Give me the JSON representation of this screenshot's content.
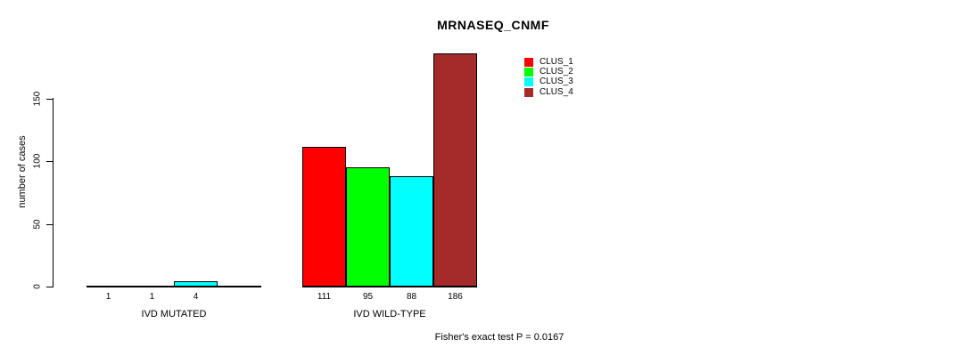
{
  "title": "MRNASEQ_CNMF",
  "footer": "Fisher's exact test P = 0.0167",
  "colors": {
    "background": "#ffffff",
    "axis": "#000000",
    "bar_border": "#000000",
    "clus_1": "#ff0000",
    "clus_2": "#00ff00",
    "clus_3": "#00ffff",
    "clus_4": "#a52a2a"
  },
  "chart_data": {
    "type": "bar",
    "title": "MRNASEQ_CNMF",
    "xlabel": "",
    "ylabel": "number of cases",
    "ylim": [
      0,
      186
    ],
    "yticks": [
      0,
      50,
      100,
      150
    ],
    "grid": false,
    "legend_position": "top-right",
    "categories": [
      "IVD MUTATED",
      "IVD WILD-TYPE"
    ],
    "series": [
      {
        "name": "CLUS_1",
        "color": "#ff0000",
        "values": [
          1,
          111
        ]
      },
      {
        "name": "CLUS_2",
        "color": "#00ff00",
        "values": [
          1,
          95
        ]
      },
      {
        "name": "CLUS_3",
        "color": "#00ffff",
        "values": [
          4,
          88
        ]
      },
      {
        "name": "CLUS_4",
        "color": "#a52a2a",
        "values": [
          0,
          186
        ]
      }
    ],
    "bar_count_labels": [
      [
        "1",
        "1",
        "4",
        ""
      ],
      [
        "111",
        "95",
        "88",
        "186"
      ]
    ],
    "annotation": "Fisher's exact test P = 0.0167"
  }
}
